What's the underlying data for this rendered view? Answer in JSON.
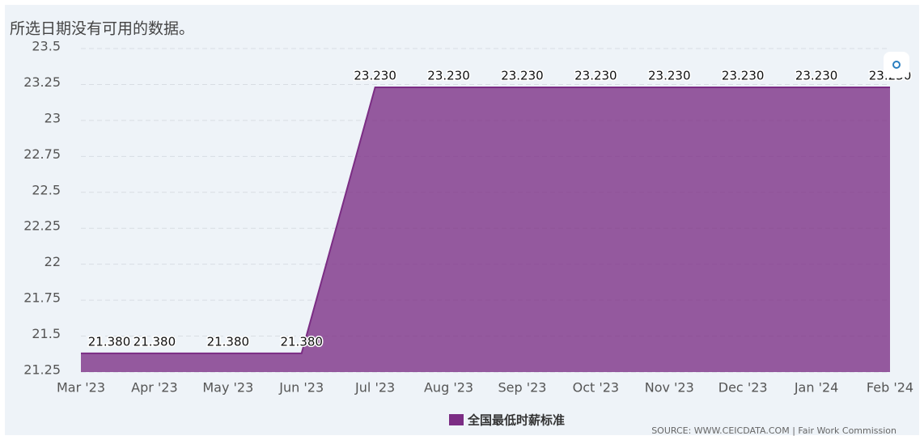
{
  "chart_data": {
    "type": "area",
    "title": "所选日期没有可用的数据。",
    "categories": [
      "Mar '23",
      "Apr '23",
      "May '23",
      "Jun '23",
      "Jul '23",
      "Aug '23",
      "Sep '23",
      "Oct '23",
      "Nov '23",
      "Dec '23",
      "Jan '24",
      "Feb '24"
    ],
    "series": [
      {
        "name": "全国最低时薪标准",
        "color": "#7b2d84",
        "values": [
          21.38,
          21.38,
          21.38,
          21.38,
          23.23,
          23.23,
          23.23,
          23.23,
          23.23,
          23.23,
          23.23,
          23.23
        ],
        "value_labels": [
          "21.380",
          "21.380",
          "21.380",
          "21.380",
          "23.230",
          "23.230",
          "23.230",
          "23.230",
          "23.230",
          "23.230",
          "23.230",
          "23.230"
        ]
      }
    ],
    "ylim": [
      21.25,
      23.5
    ],
    "yticks": [
      21.25,
      21.5,
      21.75,
      22,
      22.25,
      22.5,
      22.75,
      23,
      23.25,
      23.5
    ],
    "grid": true,
    "legend": "bottom",
    "source": "SOURCE: WWW.CEICDATA.COM | Fair Work Commission"
  }
}
